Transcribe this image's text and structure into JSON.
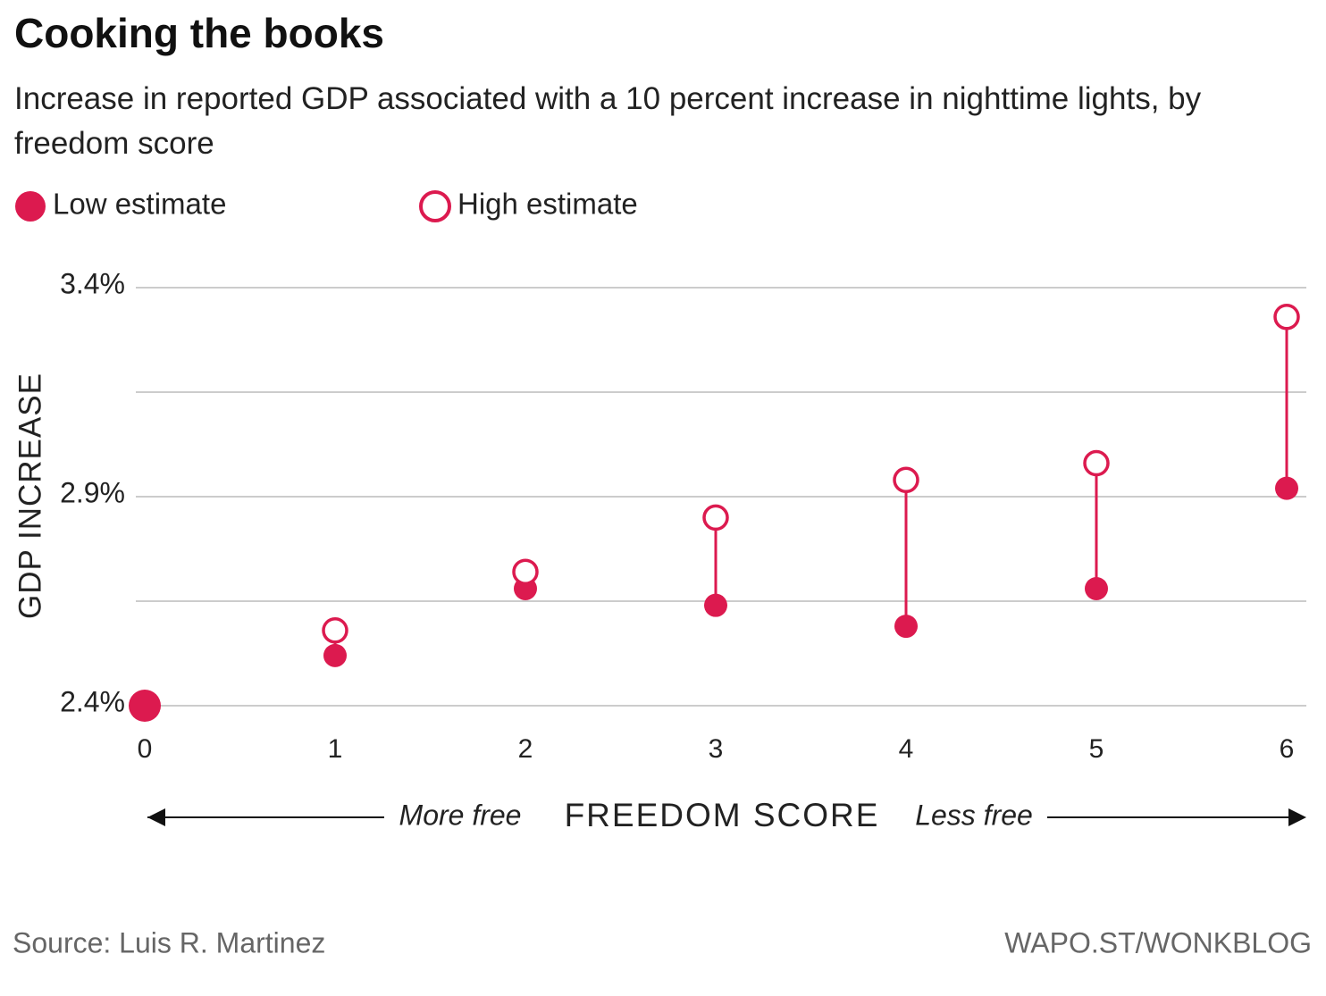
{
  "chart_data": {
    "type": "dumbbell",
    "title": "Cooking the books",
    "subtitle": "Increase in reported GDP associated with a 10 percent increase in nighttime lights, by freedom score",
    "x_label": "FREEDOM SCORE",
    "y_label": "GDP INCREASE",
    "annotations": {
      "left": "More free",
      "right": "Less free"
    },
    "source": "Source: Luis R. Martinez",
    "credit": "WAPO.ST/WONKBLOG",
    "x": [
      0,
      1,
      2,
      3,
      4,
      5,
      6
    ],
    "series": [
      {
        "name": "Low estimate",
        "color": "#dc1a4f",
        "filled": true,
        "values": [
          2.4,
          2.52,
          2.68,
          2.64,
          2.59,
          2.68,
          2.92
        ]
      },
      {
        "name": "High estimate",
        "color": "#dc1a4f",
        "filled": false,
        "values": [
          null,
          2.58,
          2.72,
          2.85,
          2.94,
          2.98,
          3.33
        ]
      }
    ],
    "xlim": [
      0,
      6
    ],
    "xticks": [
      0,
      1,
      2,
      3,
      4,
      5,
      6
    ],
    "ylim": [
      2.4,
      3.4
    ],
    "yticks": [
      {
        "value": 2.4,
        "label": "2.4%"
      },
      {
        "value": 2.9,
        "label": "2.9%"
      },
      {
        "value": 3.4,
        "label": "3.4%"
      }
    ],
    "minor_yticks": [
      2.65,
      3.15
    ],
    "grid": true
  }
}
